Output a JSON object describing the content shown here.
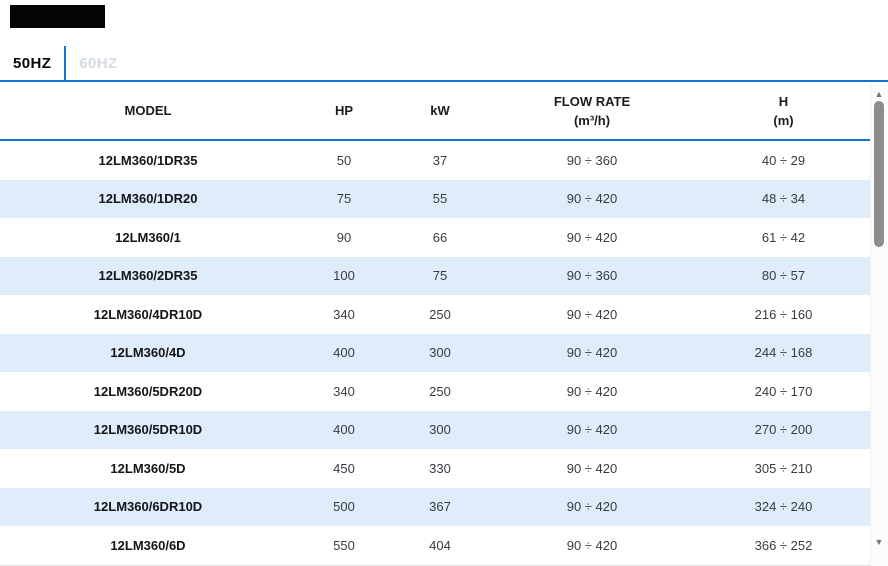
{
  "tabs": {
    "items": [
      {
        "key": "50hz",
        "label": "50HZ",
        "active": true
      },
      {
        "key": "60hz",
        "label": "60HZ",
        "active": false
      }
    ]
  },
  "table": {
    "columns": [
      {
        "key": "model",
        "label": "MODEL",
        "sub": ""
      },
      {
        "key": "hp",
        "label": "HP",
        "sub": ""
      },
      {
        "key": "kw",
        "label": "kW",
        "sub": ""
      },
      {
        "key": "flow",
        "label": "FLOW RATE",
        "sub": "(m³/h)"
      },
      {
        "key": "h",
        "label": "H",
        "sub": "(m)"
      }
    ],
    "rows": [
      {
        "model": "12LM360/1DR35",
        "hp": "50",
        "kw": "37",
        "flow": "90 ÷ 360",
        "h": "40 ÷ 29"
      },
      {
        "model": "12LM360/1DR20",
        "hp": "75",
        "kw": "55",
        "flow": "90 ÷ 420",
        "h": "48 ÷ 34"
      },
      {
        "model": "12LM360/1",
        "hp": "90",
        "kw": "66",
        "flow": "90 ÷ 420",
        "h": "61 ÷ 42"
      },
      {
        "model": "12LM360/2DR35",
        "hp": "100",
        "kw": "75",
        "flow": "90 ÷ 360",
        "h": "80 ÷ 57"
      },
      {
        "model": "12LM360/4DR10D",
        "hp": "340",
        "kw": "250",
        "flow": "90 ÷ 420",
        "h": "216 ÷ 160"
      },
      {
        "model": "12LM360/4D",
        "hp": "400",
        "kw": "300",
        "flow": "90 ÷ 420",
        "h": "244 ÷ 168"
      },
      {
        "model": "12LM360/5DR20D",
        "hp": "340",
        "kw": "250",
        "flow": "90 ÷ 420",
        "h": "240 ÷ 170"
      },
      {
        "model": "12LM360/5DR10D",
        "hp": "400",
        "kw": "300",
        "flow": "90 ÷ 420",
        "h": "270 ÷ 200"
      },
      {
        "model": "12LM360/5D",
        "hp": "450",
        "kw": "330",
        "flow": "90 ÷ 420",
        "h": "305 ÷ 210"
      },
      {
        "model": "12LM360/6DR10D",
        "hp": "500",
        "kw": "367",
        "flow": "90 ÷ 420",
        "h": "324 ÷ 240"
      },
      {
        "model": "12LM360/6D",
        "hp": "550",
        "kw": "404",
        "flow": "90 ÷ 420",
        "h": "366 ÷ 252"
      }
    ]
  },
  "scrollbar": {
    "up_arrow": "▲",
    "down_arrow": "▼"
  },
  "colors": {
    "accent_blue": "#0c76d2",
    "row_alt_blue": "#dfecfa",
    "inactive_tab": "#d5dbe2",
    "black_bar": "#050505",
    "scroll_thumb": "#8d8d8d"
  }
}
